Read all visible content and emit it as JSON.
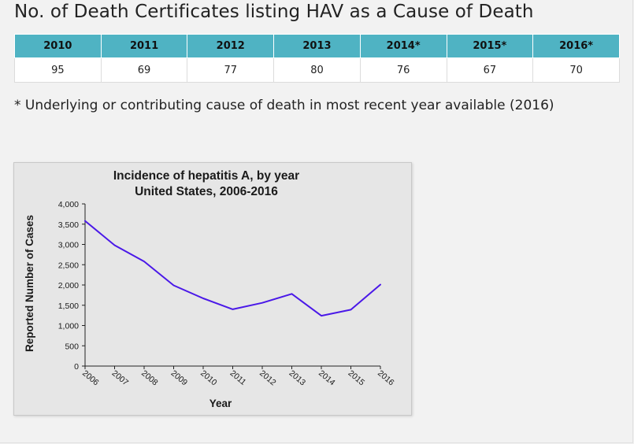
{
  "page": {
    "heading": "No. of Death Certificates listing HAV as a Cause of Death",
    "footnote": "* Underlying or contributing cause of death in most recent year available (2016)"
  },
  "table": {
    "headers": [
      "2010",
      "2011",
      "2012",
      "2013",
      "2014*",
      "2015*",
      "2016*"
    ],
    "values": [
      "95",
      "69",
      "77",
      "80",
      "76",
      "67",
      "70"
    ],
    "header_color": "#4fb3c3"
  },
  "chart_data": {
    "type": "line",
    "title": "Incidence of hepatitis A, by year",
    "subtitle": "United States, 2006-2016",
    "xlabel": "Year",
    "ylabel": "Reported Number of Cases",
    "x": [
      "2006",
      "2007",
      "2008",
      "2009",
      "2010",
      "2011",
      "2012",
      "2013",
      "2014",
      "2015",
      "2016"
    ],
    "series": [
      {
        "values": [
          3580,
          2980,
          2580,
          1990,
          1670,
          1400,
          1560,
          1780,
          1240,
          1390,
          2010
        ],
        "color": "#4a18e8"
      }
    ],
    "ylim": [
      0,
      4000
    ],
    "yticks": [
      0,
      500,
      1000,
      1500,
      2000,
      2500,
      3000,
      3500,
      4000
    ],
    "ytick_labels": [
      "0",
      "500",
      "1,000",
      "1,500",
      "2,000",
      "2,500",
      "3,000",
      "3,500",
      "4,000"
    ],
    "grid": false,
    "legend": "none"
  }
}
